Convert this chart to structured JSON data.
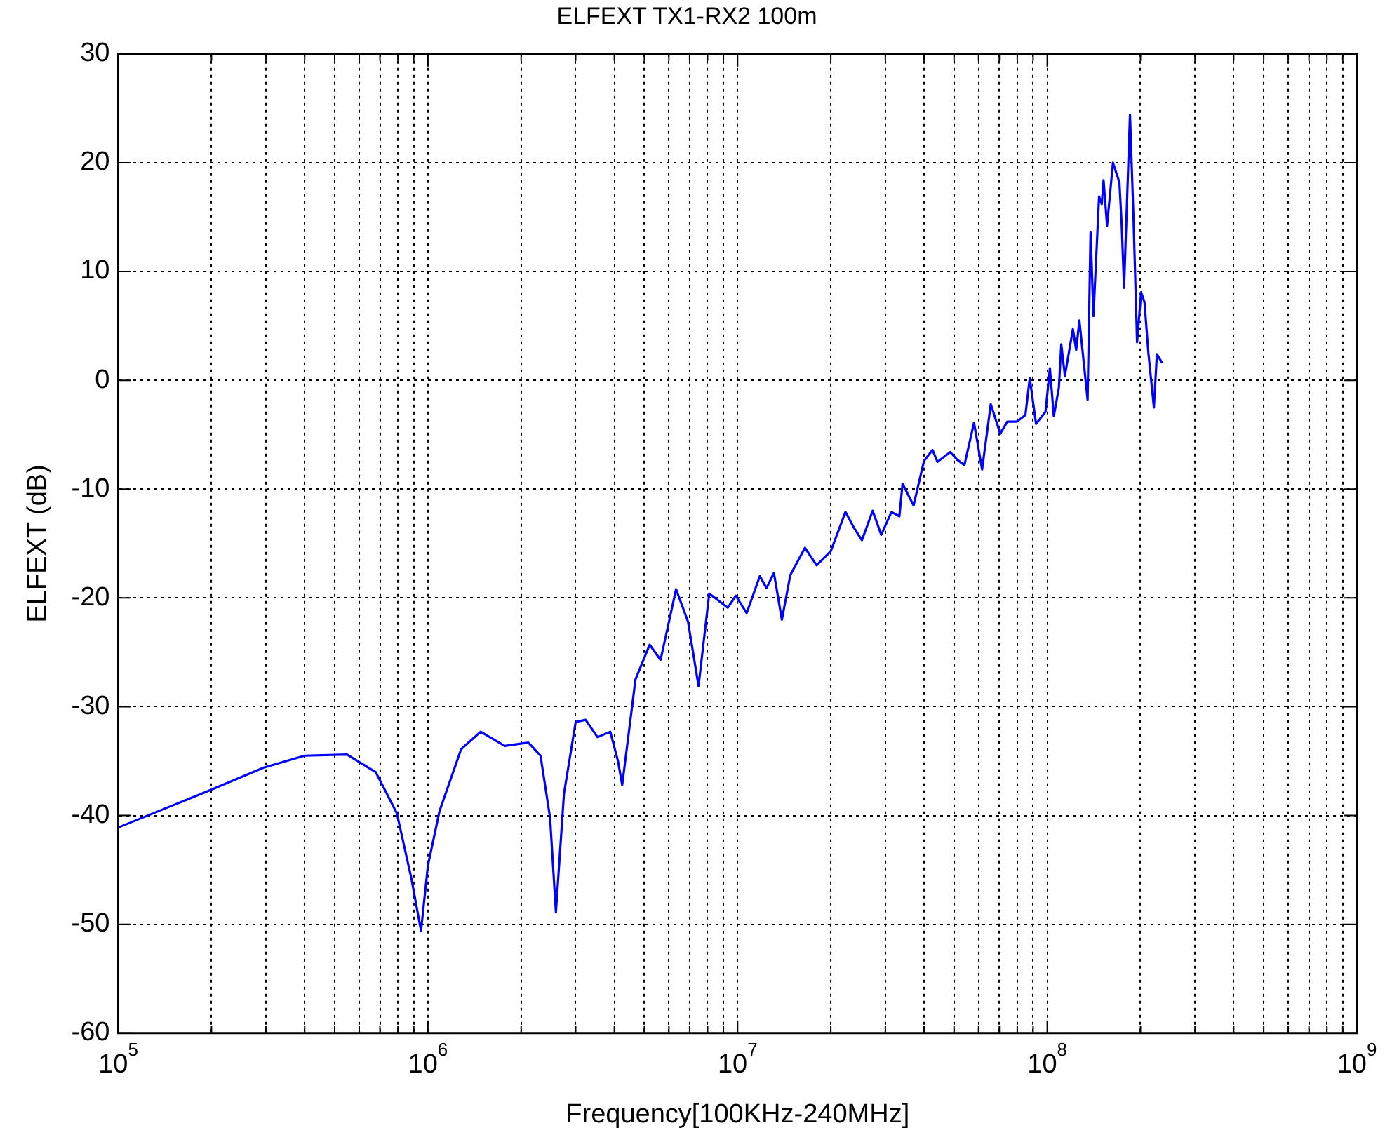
{
  "chart_data": {
    "type": "line",
    "title": "ELFEXT TX1-RX2 100m",
    "xlabel": "Frequency[100KHz-240MHz]",
    "ylabel": "ELFEXT (dB)",
    "log": "x",
    "grid": true,
    "legend": false,
    "marker": "none",
    "line_style": "solid",
    "xlim": [
      100000,
      1000000000
    ],
    "ylim": [
      -60,
      30
    ],
    "xticks": [
      {
        "value": 100000,
        "label": "10$^{5}$"
      },
      {
        "value": 200000,
        "label": null
      },
      {
        "value": 300000,
        "label": null
      },
      {
        "value": 400000,
        "label": null
      },
      {
        "value": 500000,
        "label": null
      },
      {
        "value": 600000,
        "label": null
      },
      {
        "value": 700000,
        "label": null
      },
      {
        "value": 800000,
        "label": null
      },
      {
        "value": 900000,
        "label": null
      },
      {
        "value": 1000000,
        "label": "10$^{6}$"
      },
      {
        "value": 2000000,
        "label": null
      },
      {
        "value": 3000000,
        "label": null
      },
      {
        "value": 4000000,
        "label": null
      },
      {
        "value": 5000000,
        "label": null
      },
      {
        "value": 6000000,
        "label": null
      },
      {
        "value": 7000000,
        "label": null
      },
      {
        "value": 8000000,
        "label": null
      },
      {
        "value": 9000000,
        "label": null
      },
      {
        "value": 10000000,
        "label": "10$^{7}$"
      },
      {
        "value": 20000000,
        "label": null
      },
      {
        "value": 30000000,
        "label": null
      },
      {
        "value": 40000000,
        "label": null
      },
      {
        "value": 50000000,
        "label": null
      },
      {
        "value": 60000000,
        "label": null
      },
      {
        "value": 70000000,
        "label": null
      },
      {
        "value": 80000000,
        "label": null
      },
      {
        "value": 90000000,
        "label": null
      },
      {
        "value": 100000000,
        "label": "10$^{8}$"
      },
      {
        "value": 200000000,
        "label": null
      },
      {
        "value": 300000000,
        "label": null
      },
      {
        "value": 400000000,
        "label": null
      },
      {
        "value": 500000000,
        "label": null
      },
      {
        "value": 600000000,
        "label": null
      },
      {
        "value": 700000000,
        "label": null
      },
      {
        "value": 800000000,
        "label": null
      },
      {
        "value": 900000000,
        "label": null
      },
      {
        "value": 1000000000,
        "label": "10$^{9}$"
      }
    ],
    "yticks": [
      -60,
      -50,
      -40,
      -30,
      -20,
      -10,
      0,
      10,
      20,
      30
    ],
    "x": [
      100000,
      193000,
      295000,
      400000,
      548000,
      678000,
      794000,
      886000,
      950000,
      1000000,
      1090000,
      1280000,
      1480000,
      1770000,
      2110000,
      2310000,
      2480000,
      2590000,
      2750000,
      3000000,
      3230000,
      3530000,
      3880000,
      4110000,
      4240000,
      4680000,
      5200000,
      5640000,
      6330000,
      6920000,
      7480000,
      8100000,
      9290000,
      9870000,
      10700000,
      11800000,
      12400000,
      13100000,
      13900000,
      14800000,
      16500000,
      18000000,
      20000000,
      22300000,
      23700000,
      25200000,
      27300000,
      29100000,
      31400000,
      33300000,
      34100000,
      37000000,
      40000000,
      42600000,
      44200000,
      48600000,
      51200000,
      54000000,
      58000000,
      61600000,
      65700000,
      70500000,
      74300000,
      79800000,
      85000000,
      87800000,
      92000000,
      98700000,
      102000000,
      105000000,
      109000000,
      111000000,
      114000000,
      121000000,
      124000000,
      127000000,
      135000000,
      138000000,
      141000000,
      147000000,
      150000000,
      152000000,
      156000000,
      163000000,
      171000000,
      174000000,
      177000000,
      185000000,
      190000000,
      195000000,
      201000000,
      206000000,
      212000000,
      221000000,
      226000000,
      235000000
    ],
    "series": [
      {
        "color": "#0000ff",
        "values": [
          -41.1,
          -37.8,
          -35.6,
          -34.5,
          -34.4,
          -36.0,
          -39.8,
          -45.9,
          -50.6,
          -44.6,
          -39.6,
          -33.9,
          -32.3,
          -33.6,
          -33.3,
          -34.5,
          -40.2,
          -48.9,
          -38.0,
          -31.4,
          -31.2,
          -32.8,
          -32.3,
          -35.0,
          -37.2,
          -27.5,
          -24.3,
          -25.7,
          -19.2,
          -22.2,
          -28.1,
          -19.6,
          -20.9,
          -19.8,
          -21.4,
          -18.0,
          -19.1,
          -17.7,
          -22.0,
          -17.9,
          -15.4,
          -17.0,
          -15.7,
          -12.1,
          -13.5,
          -14.7,
          -12.0,
          -14.2,
          -12.1,
          -12.5,
          -9.5,
          -11.5,
          -7.4,
          -6.4,
          -7.5,
          -6.6,
          -7.3,
          -7.8,
          -3.9,
          -8.2,
          -2.2,
          -4.9,
          -3.8,
          -3.8,
          -3.2,
          0.2,
          -4.0,
          -2.9,
          1.1,
          -3.3,
          -0.7,
          3.3,
          0.4,
          4.7,
          2.8,
          5.5,
          -1.8,
          13.6,
          5.9,
          16.9,
          16.2,
          18.4,
          14.2,
          20.0,
          18.2,
          14.2,
          8.5,
          24.4,
          14.7,
          3.5,
          8.1,
          7.2,
          2.6,
          -2.5,
          2.4,
          1.6
        ]
      }
    ]
  }
}
